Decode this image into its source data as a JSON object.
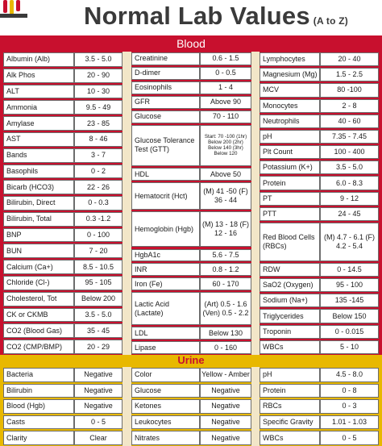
{
  "title": "Normal Lab Values",
  "title_suffix": "(A to Z)",
  "blood": {
    "label": "Blood",
    "col1": [
      {
        "name": "Albumin (Alb)",
        "value": "3.5 - 5.0"
      },
      {
        "name": "Alk Phos",
        "value": "20 - 90"
      },
      {
        "name": "ALT",
        "value": "10 - 30"
      },
      {
        "name": "Ammonia",
        "value": "9.5 - 49"
      },
      {
        "name": "Amylase",
        "value": "23 - 85"
      },
      {
        "name": "AST",
        "value": "8 - 46"
      },
      {
        "name": "Bands",
        "value": "3 - 7"
      },
      {
        "name": "Basophils",
        "value": "0 - 2"
      },
      {
        "name": "Bicarb (HCO3)",
        "value": "22 - 26"
      },
      {
        "name": "Bilirubin, Direct",
        "value": "0 - 0.3"
      },
      {
        "name": "Bilirubin, Total",
        "value": "0.3 -1.2"
      },
      {
        "name": "BNP",
        "value": "0 - 100"
      },
      {
        "name": "BUN",
        "value": "7 - 20"
      },
      {
        "name": "Calcium (Ca+)",
        "value": "8.5 - 10.5"
      },
      {
        "name": "Chloride (Cl-)",
        "value": "95 - 105"
      },
      {
        "name": "Cholesterol, Tot",
        "value": "Below 200"
      },
      {
        "name": "CK or CKMB",
        "value": "3.5 - 5.0"
      },
      {
        "name": "CO2 (Blood Gas)",
        "value": "35 - 45"
      },
      {
        "name": "CO2 (CMP/BMP)",
        "value": "20 - 29"
      }
    ],
    "col2": [
      {
        "name": "Creatinine",
        "value": "0.6 - 1.5"
      },
      {
        "name": "D-dimer",
        "value": "0 - 0.5"
      },
      {
        "name": "Eosinophils",
        "value": "1 - 4"
      },
      {
        "name": "GFR",
        "value": "Above 90"
      },
      {
        "name": "Glucose",
        "value": "70 - 110"
      },
      {
        "name": "Glucose Tolerance Test (GTT)",
        "value": "Start: 70 -100 (1hr) Below 200 (2hr) Below 140 (3hr) Below 120"
      },
      {
        "name": "HDL",
        "value": "Above 50"
      },
      {
        "name": "Hematocrit (Hct)",
        "value": "(M) 41 -50 (F) 36 - 44"
      },
      {
        "name": "Hemoglobin (Hgb)",
        "value": "(M) 13 - 18 (F) 12 - 16"
      },
      {
        "name": "HgbA1c",
        "value": "5.6 - 7.5"
      },
      {
        "name": "INR",
        "value": "0.8 - 1.2"
      },
      {
        "name": "Iron (Fe)",
        "value": "60 - 170"
      },
      {
        "name": "Lactic Acid (Lactate)",
        "value": "(Art) 0.5 - 1.6 (Ven) 0.5 - 2.2"
      },
      {
        "name": "LDL",
        "value": "Below 130"
      },
      {
        "name": "Lipase",
        "value": "0 - 160"
      }
    ],
    "col3": [
      {
        "name": "Lymphocytes",
        "value": "20 - 40"
      },
      {
        "name": "Magnesium (Mg)",
        "value": "1.5 - 2.5"
      },
      {
        "name": "MCV",
        "value": "80 -100"
      },
      {
        "name": "Monocytes",
        "value": "2 - 8"
      },
      {
        "name": "Neutrophils",
        "value": "40 - 60"
      },
      {
        "name": "pH",
        "value": "7.35 - 7.45"
      },
      {
        "name": "Plt Count",
        "value": "100 - 400"
      },
      {
        "name": "Potassium (K+)",
        "value": "3.5 - 5.0"
      },
      {
        "name": "Protein",
        "value": "6.0 - 8.3"
      },
      {
        "name": "PT",
        "value": "9 - 12"
      },
      {
        "name": "PTT",
        "value": "24 - 45"
      },
      {
        "name": "Red Blood Cells (RBCs)",
        "value": "(M) 4.7 - 6.1 (F) 4.2 - 5.4"
      },
      {
        "name": "RDW",
        "value": "0 - 14.5"
      },
      {
        "name": "SaO2 (Oxygen)",
        "value": "95 - 100"
      },
      {
        "name": "Sodium (Na+)",
        "value": "135 -145"
      },
      {
        "name": "Triglycerides",
        "value": "Below 150"
      },
      {
        "name": "Troponin",
        "value": "0 - 0.015"
      },
      {
        "name": "WBCs",
        "value": "5 - 10"
      }
    ]
  },
  "urine": {
    "label": "Urine",
    "col1": [
      {
        "name": "Bacteria",
        "value": "Negative"
      },
      {
        "name": "Bilirubin",
        "value": "Negative"
      },
      {
        "name": "Blood (Hgb)",
        "value": "Negative"
      },
      {
        "name": "Casts",
        "value": "0 - 5"
      },
      {
        "name": "Clarity",
        "value": "Clear"
      }
    ],
    "col2": [
      {
        "name": "Color",
        "value": "Yellow - Amber"
      },
      {
        "name": "Glucose",
        "value": "Negative"
      },
      {
        "name": "Ketones",
        "value": "Negative"
      },
      {
        "name": "Leukocytes",
        "value": "Negative"
      },
      {
        "name": "Nitrates",
        "value": "Negative"
      }
    ],
    "col3": [
      {
        "name": "pH",
        "value": "4.5 - 8.0"
      },
      {
        "name": "Protein",
        "value": "0 - 8"
      },
      {
        "name": "RBCs",
        "value": "0 - 3"
      },
      {
        "name": "Specific Gravity",
        "value": "1.01 - 1.03"
      },
      {
        "name": "WBCs",
        "value": "0 - 5"
      }
    ]
  },
  "colors": {
    "blood_accent": "#c8102e",
    "urine_accent": "#e8b800"
  }
}
